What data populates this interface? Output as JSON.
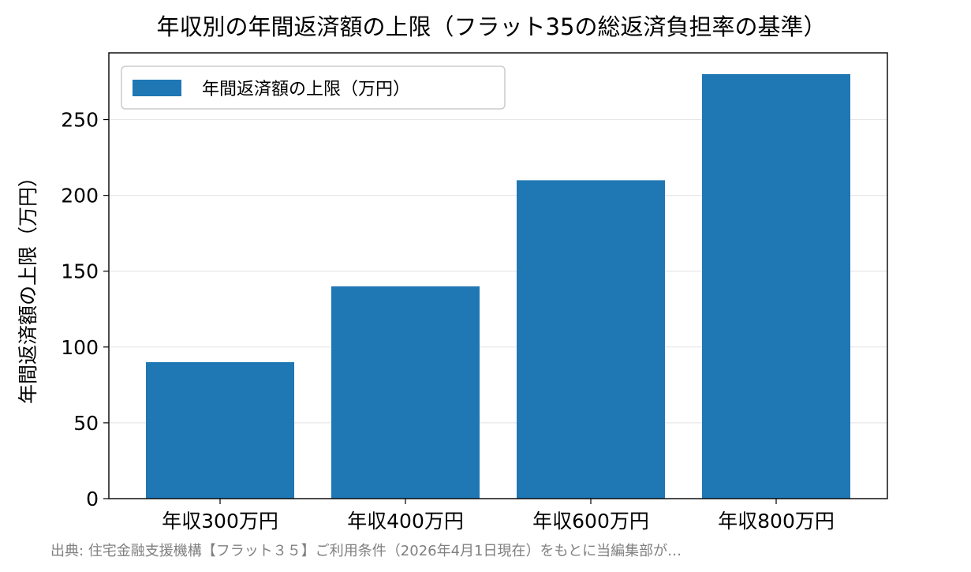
{
  "chart_data": {
    "type": "bar",
    "title": "年収別の年間返済額の上限（フラット35の総返済負担率の基準）",
    "xlabel": "",
    "ylabel": "年間返済額の上限（万円）",
    "categories": [
      "年収300万円",
      "年収400万円",
      "年収600万円",
      "年収800万円"
    ],
    "series": [
      {
        "name": "年間返済額の上限（万円）",
        "values": [
          90,
          140,
          210,
          280
        ],
        "color": "#1f77b4"
      }
    ],
    "ylim": [
      0,
      294
    ],
    "yticks": [
      0,
      50,
      100,
      150,
      200,
      250
    ],
    "ytick_labels": [
      "0",
      "50",
      "100",
      "150",
      "200",
      "250"
    ],
    "grid": "y",
    "legend_position": "upper-left"
  },
  "footer": {
    "source": "出典: 住宅金融支援機構【フラット３５】ご利用条件（2026年4月1日現在）をもとに当編集部が…"
  }
}
